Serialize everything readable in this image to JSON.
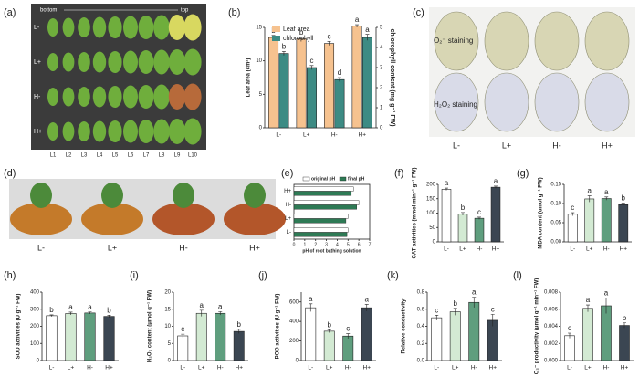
{
  "photo_panels": [
    {
      "panel_label": "(a)",
      "start_label": "bottom",
      "end_label": "top",
      "rows": [
        "L-",
        "L+",
        "H-",
        "H+"
      ],
      "columns": [
        "L1",
        "L2",
        "L3",
        "L4",
        "L5",
        "L6",
        "L7",
        "L8",
        "L9",
        "L10"
      ]
    },
    {
      "panel_label": "(c)",
      "rows": [
        "O₂⁻ staining",
        "H₂O₂ staining"
      ],
      "columns": [
        "L-",
        "L+",
        "H-",
        "H+"
      ]
    },
    {
      "panel_label": "(d)",
      "columns": [
        "L-",
        "L+",
        "H-",
        "H+"
      ]
    }
  ],
  "chart_data": [
    {
      "type": "bar",
      "panel_label": "(b)",
      "categories": [
        "L-",
        "L+",
        "H-",
        "H+"
      ],
      "y_label": "Leaf area (cm²)",
      "y2_label": "chlorophyll content (mg g⁻¹ FW)",
      "ylim": [
        0,
        15
      ],
      "yticks": [
        0,
        5,
        10,
        15
      ],
      "y2lim": [
        0,
        5
      ],
      "y2ticks": [
        0,
        1,
        2,
        3,
        4,
        5
      ],
      "legend": "upper left",
      "series": [
        {
          "name": "Leaf area",
          "color": "#f6c28f",
          "values": [
            13.5,
            13.3,
            12.6,
            15.2
          ],
          "errors": [
            0.3,
            0.2,
            0.3,
            0.2
          ],
          "letters": [
            "b",
            "b",
            "c",
            "a"
          ]
        },
        {
          "name": "chlorophyll",
          "color": "#3d8b84",
          "axis": "y2",
          "values": [
            3.7,
            3.0,
            2.4,
            4.5
          ],
          "errors": [
            0.1,
            0.1,
            0.1,
            0.15
          ],
          "letters": [
            "b",
            "c",
            "d",
            "a"
          ]
        }
      ]
    },
    {
      "type": "hbar",
      "panel_label": "(e)",
      "categories": [
        "H+",
        "H-",
        "L+",
        "L-"
      ],
      "x_label": "pH of root bathing solution",
      "xlim": [
        0,
        7
      ],
      "xticks": [
        0,
        1,
        2,
        3,
        4,
        5,
        6,
        7
      ],
      "legend": "top",
      "series": [
        {
          "name": "original pH",
          "color": "#ffffff",
          "values": [
            5.5,
            6.0,
            5.0,
            5.0
          ]
        },
        {
          "name": "final pH",
          "color": "#2e7a55",
          "values": [
            5.3,
            5.8,
            4.8,
            4.9
          ]
        }
      ]
    },
    {
      "type": "bar",
      "panel_label": "(f)",
      "categories": [
        "L-",
        "L+",
        "H-",
        "H+"
      ],
      "y_label": "CAT activities (mmol min⁻¹ g⁻¹ FW)",
      "ylim": [
        0,
        200
      ],
      "yticks": [
        0,
        50,
        100,
        150,
        200
      ],
      "values": [
        183,
        97,
        82,
        190
      ],
      "errors": [
        4,
        5,
        4,
        4
      ],
      "letters": [
        "a",
        "b",
        "c",
        "a"
      ],
      "colors": [
        "#ffffff",
        "#d3ead3",
        "#5f9e7e",
        "#3b4652"
      ]
    },
    {
      "type": "bar",
      "panel_label": "(g)",
      "categories": [
        "L-",
        "L+",
        "H-",
        "H+"
      ],
      "y_label": "MDA content (umol g⁻¹ FW)",
      "ylim": [
        0,
        0.15
      ],
      "yticks": [
        {
          "value": 0,
          "label": "0.00"
        },
        0.05,
        {
          "value": 0.1,
          "label": "0.10"
        },
        0.15
      ],
      "values": [
        0.072,
        0.112,
        0.113,
        0.097
      ],
      "errors": [
        0.004,
        0.008,
        0.004,
        0.004
      ],
      "letters": [
        "c",
        "a",
        "a",
        "b"
      ],
      "colors": [
        "#ffffff",
        "#d3ead3",
        "#5f9e7e",
        "#3b4652"
      ]
    },
    {
      "type": "bar",
      "panel_label": "(h)",
      "categories": [
        "L-",
        "L+",
        "H-",
        "H+"
      ],
      "y_label": "SOD activities (U g⁻¹ FW)",
      "ylim": [
        0,
        400
      ],
      "yticks": [
        0,
        100,
        200,
        300,
        400
      ],
      "values": [
        262,
        275,
        278,
        258
      ],
      "errors": [
        5,
        8,
        6,
        7
      ],
      "letters": [
        "b",
        "a",
        "a",
        "b"
      ],
      "colors": [
        "#ffffff",
        "#d3ead3",
        "#5f9e7e",
        "#3b4652"
      ]
    },
    {
      "type": "bar",
      "panel_label": "(i)",
      "categories": [
        "L-",
        "L+",
        "H-",
        "H+"
      ],
      "y_label": "H₂O₂ content (μmol g⁻¹ FW)",
      "ylim": [
        0,
        20
      ],
      "yticks": [
        0,
        5,
        10,
        15,
        20
      ],
      "values": [
        7.2,
        13.8,
        13.8,
        8.5
      ],
      "errors": [
        0.5,
        0.9,
        0.5,
        0.6
      ],
      "letters": [
        "c",
        "a",
        "a",
        "b"
      ],
      "colors": [
        "#ffffff",
        "#d3ead3",
        "#5f9e7e",
        "#3b4652"
      ]
    },
    {
      "type": "bar",
      "panel_label": "(j)",
      "categories": [
        "L-",
        "L+",
        "H-",
        "H+"
      ],
      "y_label": "POD activities (U g⁻¹ FW)",
      "ylim": [
        0,
        700
      ],
      "yticks": [
        0,
        200,
        400,
        600
      ],
      "values": [
        540,
        300,
        250,
        540
      ],
      "errors": [
        40,
        15,
        25,
        35
      ],
      "letters": [
        "a",
        "b",
        "c",
        "a"
      ],
      "colors": [
        "#ffffff",
        "#d3ead3",
        "#5f9e7e",
        "#3b4652"
      ]
    },
    {
      "type": "bar",
      "panel_label": "(k)",
      "categories": [
        "L-",
        "L+",
        "H-",
        "H+"
      ],
      "y_label": "Relative conductivity",
      "ylim": [
        0,
        0.8
      ],
      "yticks": [
        {
          "value": 0,
          "label": "0.0"
        },
        0.2,
        0.4,
        0.6,
        0.8
      ],
      "values": [
        0.5,
        0.57,
        0.68,
        0.47
      ],
      "errors": [
        0.03,
        0.04,
        0.06,
        0.07
      ],
      "letters": [
        "c",
        "b",
        "a",
        "c"
      ],
      "colors": [
        "#ffffff",
        "#d3ead3",
        "#5f9e7e",
        "#3b4652"
      ]
    },
    {
      "type": "bar",
      "panel_label": "(l)",
      "categories": [
        "L-",
        "L+",
        "H-",
        "H+"
      ],
      "y_label": "O₂⁻ productivity (μmol g⁻¹ min⁻¹ FW)",
      "ylim": [
        0,
        0.008
      ],
      "yticks": [
        {
          "value": 0,
          "label": "0.000"
        },
        0.002,
        0.004,
        0.006,
        0.008
      ],
      "values": [
        0.0029,
        0.0061,
        0.0064,
        0.0041
      ],
      "errors": [
        0.0003,
        0.0004,
        0.0009,
        0.0003
      ],
      "letters": [
        "c",
        "a",
        "a",
        "b"
      ],
      "colors": [
        "#ffffff",
        "#d3ead3",
        "#5f9e7e",
        "#3b4652"
      ]
    }
  ]
}
